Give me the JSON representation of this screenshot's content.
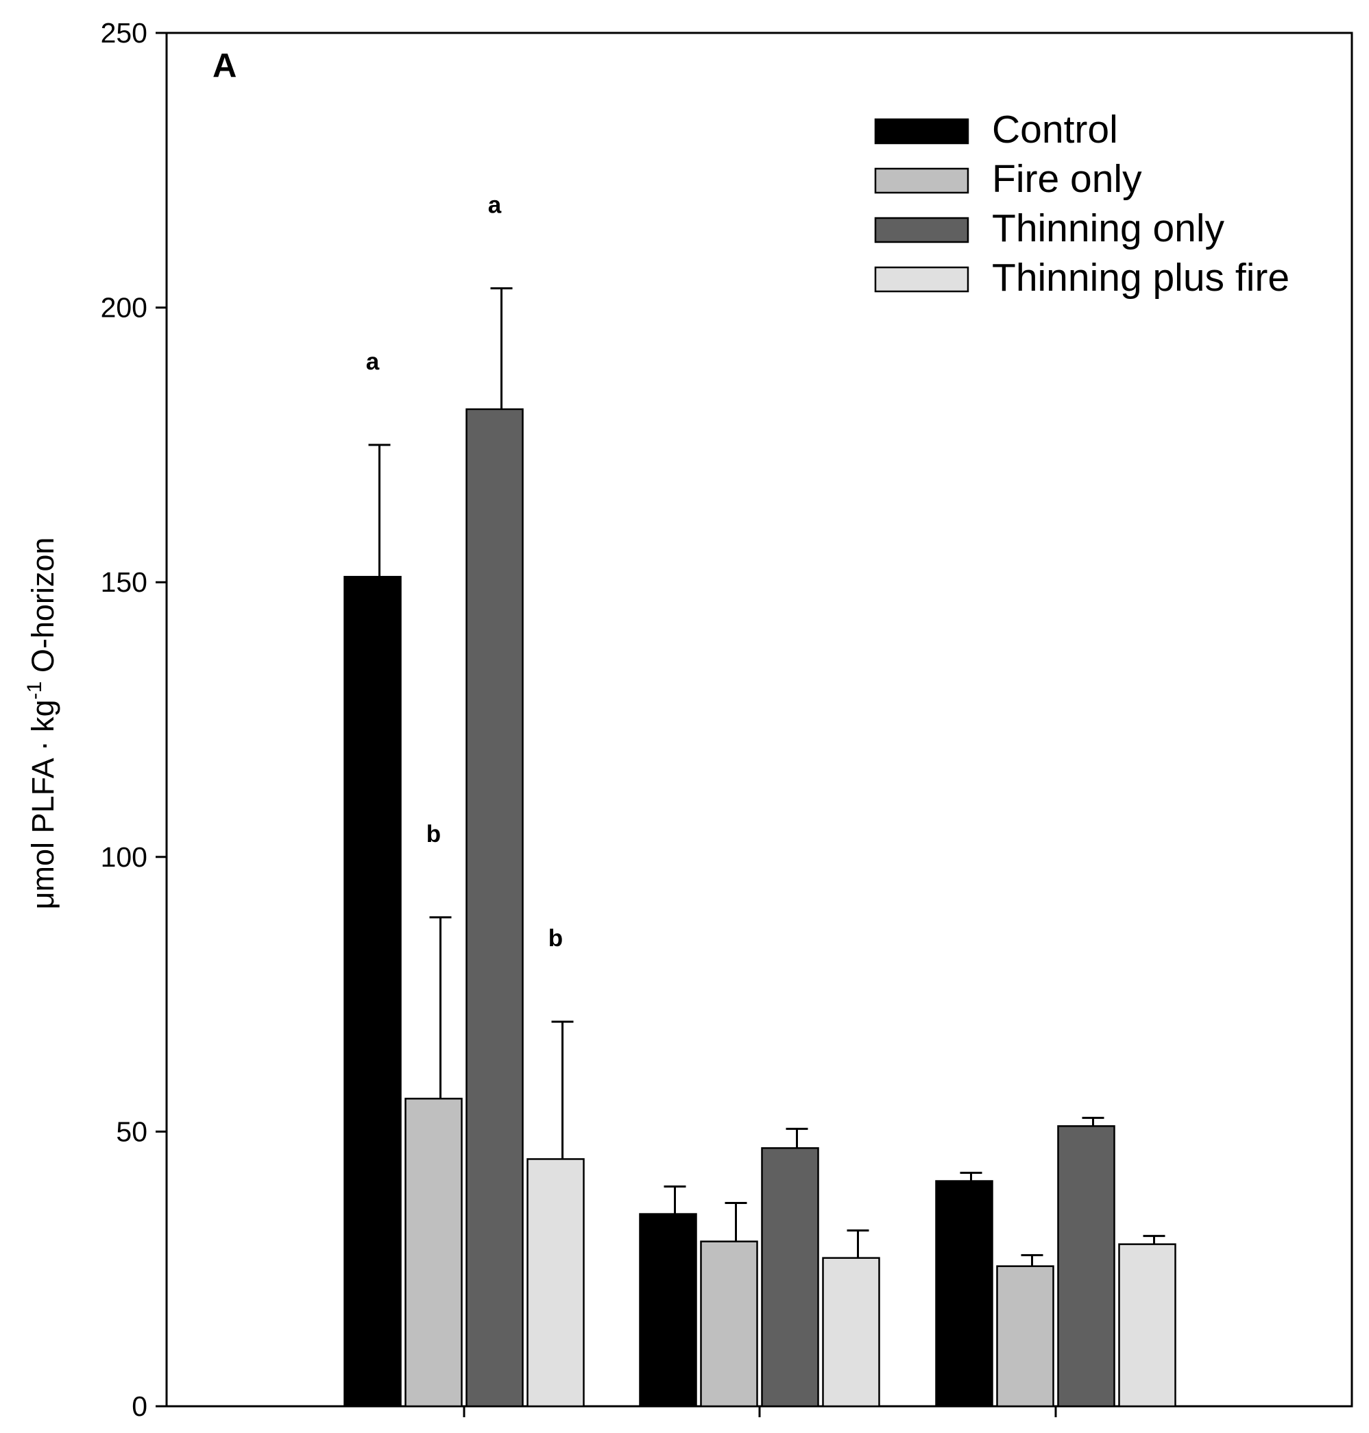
{
  "chart_data": {
    "type": "bar",
    "panel_label": "A",
    "ylabel": "μmol PLFA · kg⁻¹ O-horizon",
    "ylabel_parts": {
      "main": "μmol PLFA · kg",
      "sup": "-1",
      "end": " O-horizon"
    },
    "xlabel": "",
    "ylim": [
      0,
      250
    ],
    "yticks": [
      0,
      50,
      100,
      150,
      200,
      250
    ],
    "categories": [
      "",
      "",
      ""
    ],
    "series": [
      {
        "name": "Control",
        "color": "#000000",
        "values": [
          151,
          35,
          41
        ],
        "errors": [
          24,
          5,
          1.5
        ]
      },
      {
        "name": "Fire only",
        "color": "#bfbfbf",
        "values": [
          56,
          30,
          25.5
        ],
        "errors": [
          33,
          7,
          2
        ]
      },
      {
        "name": "Thinning only",
        "color": "#606060",
        "values": [
          181.5,
          47,
          51
        ],
        "errors": [
          22,
          3.5,
          1.5
        ]
      },
      {
        "name": "Thinning plus fire",
        "color": "#e0e0e0",
        "values": [
          45,
          27,
          29.5
        ],
        "errors": [
          25,
          5,
          1.5
        ]
      }
    ],
    "significance_letters": [
      {
        "group": 0,
        "series": 0,
        "label": "a"
      },
      {
        "group": 0,
        "series": 1,
        "label": "b"
      },
      {
        "group": 0,
        "series": 2,
        "label": "a"
      },
      {
        "group": 0,
        "series": 3,
        "label": "b"
      }
    ],
    "legend_position": "top-right",
    "grid": false
  }
}
